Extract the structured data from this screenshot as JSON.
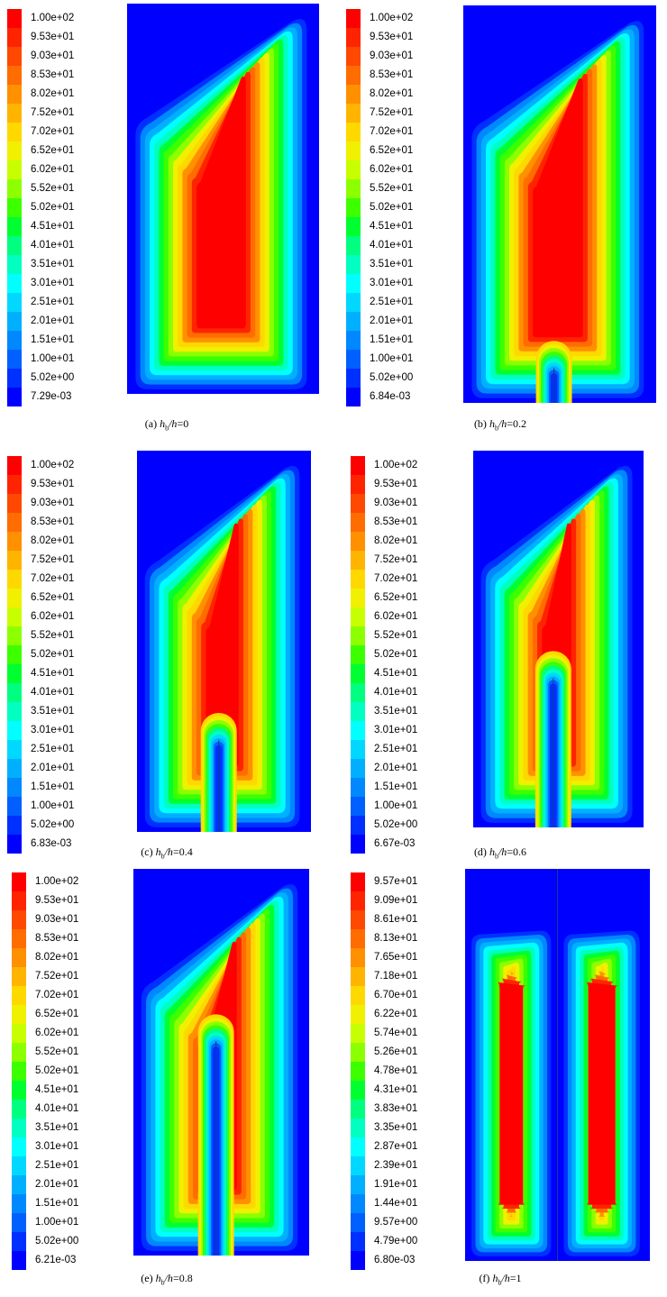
{
  "panels": [
    {
      "caption": {
        "label": "(a)",
        "var": "h",
        "sub": "b",
        "over": "/h",
        "value": "=0"
      },
      "ratio": 0,
      "legend": [
        "1.00e+02",
        "9.53e+01",
        "9.03e+01",
        "8.53e+01",
        "8.02e+01",
        "7.52e+01",
        "7.02e+01",
        "6.52e+01",
        "6.02e+01",
        "5.52e+01",
        "5.02e+01",
        "4.51e+01",
        "4.01e+01",
        "3.51e+01",
        "3.01e+01",
        "2.51e+01",
        "2.01e+01",
        "1.51e+01",
        "1.00e+01",
        "5.02e+00",
        "7.29e-03"
      ]
    },
    {
      "caption": {
        "label": "(b)",
        "var": "h",
        "sub": "b",
        "over": "/h",
        "value": "=0.2"
      },
      "ratio": 0.2,
      "legend": [
        "1.00e+02",
        "9.53e+01",
        "9.03e+01",
        "8.53e+01",
        "8.02e+01",
        "7.52e+01",
        "7.02e+01",
        "6.52e+01",
        "6.02e+01",
        "5.52e+01",
        "5.02e+01",
        "4.51e+01",
        "4.01e+01",
        "3.51e+01",
        "3.01e+01",
        "2.51e+01",
        "2.01e+01",
        "1.51e+01",
        "1.00e+01",
        "5.02e+00",
        "6.84e-03"
      ]
    },
    {
      "caption": {
        "label": "(c)",
        "var": "h",
        "sub": "b",
        "over": "/h",
        "value": "=0.4"
      },
      "ratio": 0.4,
      "legend": [
        "1.00e+02",
        "9.53e+01",
        "9.03e+01",
        "8.53e+01",
        "8.02e+01",
        "7.52e+01",
        "7.02e+01",
        "6.52e+01",
        "6.02e+01",
        "5.52e+01",
        "5.02e+01",
        "4.51e+01",
        "4.01e+01",
        "3.51e+01",
        "3.01e+01",
        "2.51e+01",
        "2.01e+01",
        "1.51e+01",
        "1.00e+01",
        "5.02e+00",
        "6.83e-03"
      ]
    },
    {
      "caption": {
        "label": "(d)",
        "var": "h",
        "sub": "b",
        "over": "/h",
        "value": "=0.6"
      },
      "ratio": 0.6,
      "legend": [
        "1.00e+02",
        "9.53e+01",
        "9.03e+01",
        "8.53e+01",
        "8.02e+01",
        "7.52e+01",
        "7.02e+01",
        "6.52e+01",
        "6.02e+01",
        "5.52e+01",
        "5.02e+01",
        "4.51e+01",
        "4.01e+01",
        "3.51e+01",
        "3.01e+01",
        "2.51e+01",
        "2.01e+01",
        "1.51e+01",
        "1.00e+01",
        "5.02e+00",
        "6.67e-03"
      ]
    },
    {
      "caption": {
        "label": "(e)",
        "var": "h",
        "sub": "b",
        "over": "/h",
        "value": "=0.8"
      },
      "ratio": 0.8,
      "legend": [
        "1.00e+02",
        "9.53e+01",
        "9.03e+01",
        "8.53e+01",
        "8.02e+01",
        "7.52e+01",
        "7.02e+01",
        "6.52e+01",
        "6.02e+01",
        "5.52e+01",
        "5.02e+01",
        "4.51e+01",
        "4.01e+01",
        "3.51e+01",
        "3.01e+01",
        "2.51e+01",
        "2.01e+01",
        "1.51e+01",
        "1.00e+01",
        "5.02e+00",
        "6.21e-03"
      ]
    },
    {
      "caption": {
        "label": "(f)",
        "var": "h",
        "sub": "b",
        "over": "/h",
        "value": "=1"
      },
      "ratio": 1,
      "legend": [
        "9.57e+01",
        "9.09e+01",
        "8.61e+01",
        "8.13e+01",
        "7.65e+01",
        "7.18e+01",
        "6.70e+01",
        "6.22e+01",
        "5.74e+01",
        "5.26e+01",
        "4.78e+01",
        "4.31e+01",
        "3.83e+01",
        "3.35e+01",
        "2.87e+01",
        "2.39e+01",
        "1.91e+01",
        "1.44e+01",
        "9.57e+00",
        "4.79e+00",
        "6.80e-03"
      ]
    }
  ],
  "colormap": [
    "#ff0000",
    "#ff2400",
    "#ff4800",
    "#ff6c00",
    "#ff9000",
    "#ffb400",
    "#ffd800",
    "#f0f000",
    "#c8ff00",
    "#8cff00",
    "#3cff00",
    "#00ff30",
    "#00ff80",
    "#00ffc0",
    "#00ffff",
    "#00d8ff",
    "#00b0ff",
    "#0088ff",
    "#0060ff",
    "#0030ff",
    "#0000ff"
  ]
}
